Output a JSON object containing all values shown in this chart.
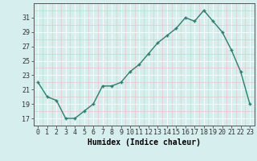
{
  "x": [
    0,
    1,
    2,
    3,
    4,
    5,
    6,
    7,
    8,
    9,
    10,
    11,
    12,
    13,
    14,
    15,
    16,
    17,
    18,
    19,
    20,
    21,
    22,
    23
  ],
  "y": [
    22,
    20,
    19.5,
    17,
    17,
    18,
    19,
    21.5,
    21.5,
    22,
    23.5,
    24.5,
    26,
    27.5,
    28.5,
    29.5,
    31,
    30.5,
    32,
    30.5,
    29,
    26.5,
    23.5,
    19
  ],
  "line_color": "#2e7d6e",
  "marker": "+",
  "marker_size": 3,
  "line_width": 1.0,
  "bg_color": "#d6eeee",
  "grid_color": "#b8d8d8",
  "grid_major_color": "#ffffff",
  "xlabel": "Humidex (Indice chaleur)",
  "xlabel_fontsize": 7,
  "tick_fontsize": 6,
  "ylim": [
    16,
    33
  ],
  "xlim": [
    -0.5,
    23.5
  ],
  "yticks": [
    17,
    19,
    21,
    23,
    25,
    27,
    29,
    31
  ],
  "xticks": [
    0,
    1,
    2,
    3,
    4,
    5,
    6,
    7,
    8,
    9,
    10,
    11,
    12,
    13,
    14,
    15,
    16,
    17,
    18,
    19,
    20,
    21,
    22,
    23
  ]
}
